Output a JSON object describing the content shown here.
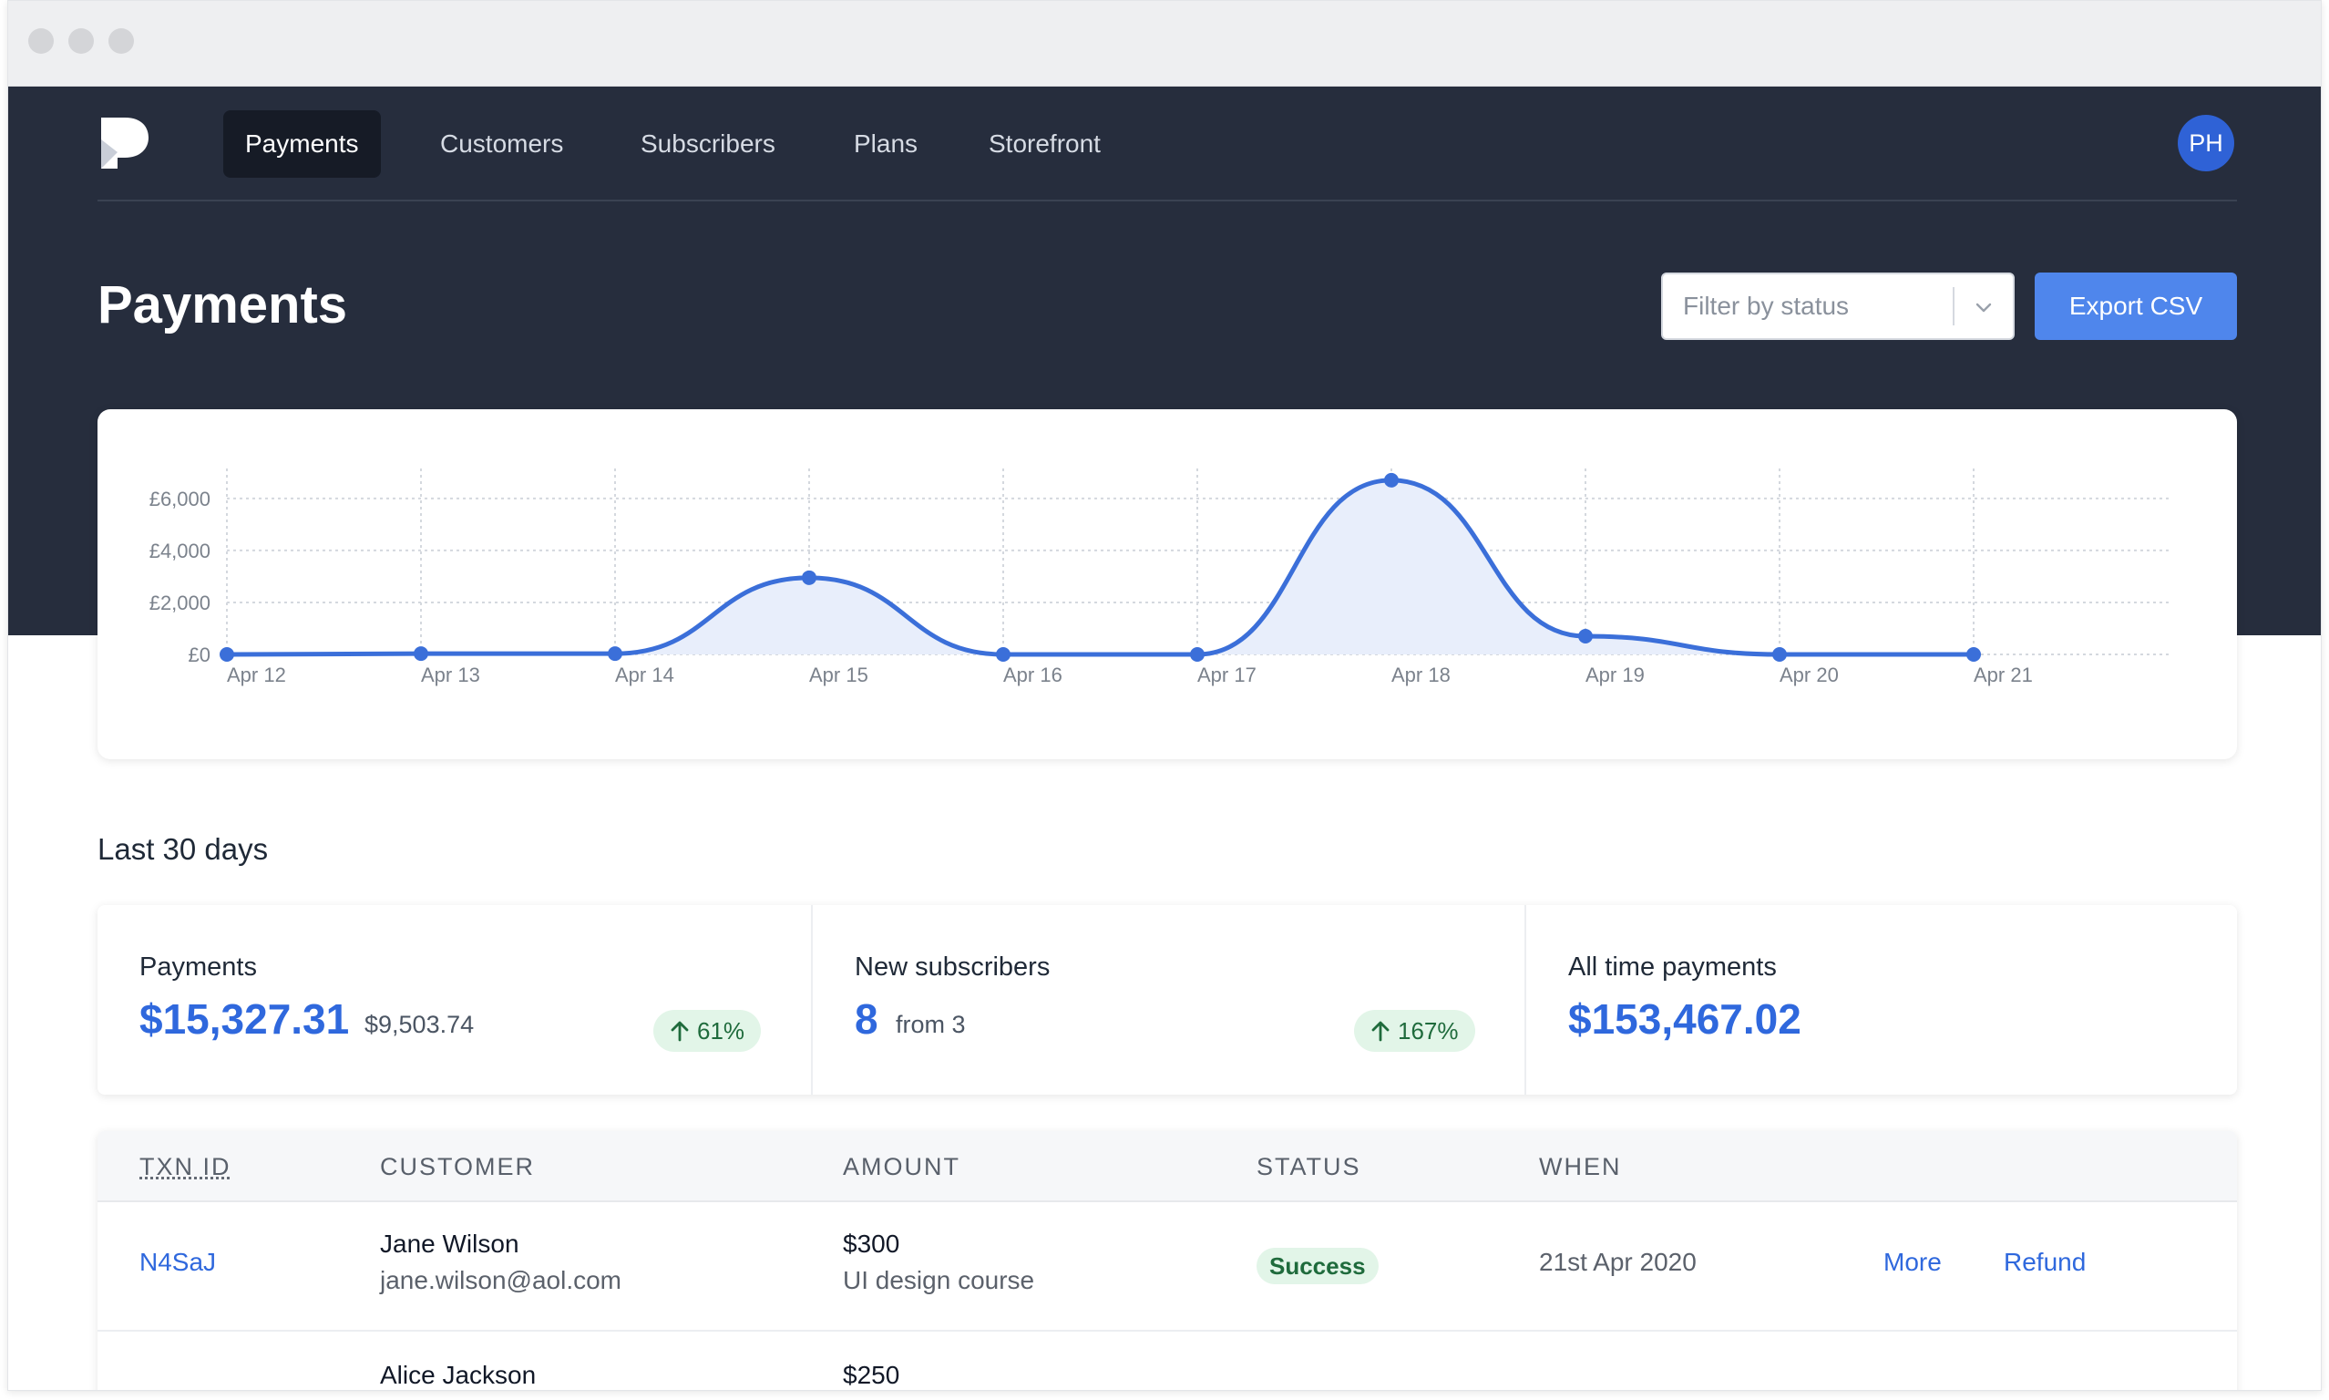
{
  "nav": {
    "items": [
      {
        "label": "Payments",
        "active": true
      },
      {
        "label": "Customers",
        "active": false
      },
      {
        "label": "Subscribers",
        "active": false
      },
      {
        "label": "Plans",
        "active": false
      },
      {
        "label": "Storefront",
        "active": false
      }
    ],
    "avatar_initials": "PH"
  },
  "header": {
    "title": "Payments",
    "filter_placeholder": "Filter by status",
    "export_label": "Export CSV"
  },
  "chart_data": {
    "type": "area",
    "x": [
      "Apr 12",
      "Apr 13",
      "Apr 14",
      "Apr 15",
      "Apr 16",
      "Apr 17",
      "Apr 18",
      "Apr 19",
      "Apr 20",
      "Apr 21"
    ],
    "series": [
      {
        "values": [
          0,
          30,
          30,
          2950,
          0,
          0,
          6700,
          700,
          0,
          0
        ]
      }
    ],
    "y_ticks": [
      "£0",
      "£2,000",
      "£4,000",
      "£6,000"
    ],
    "ylim": [
      0,
      6800
    ],
    "grid": true,
    "line_color": "#3b6fd9",
    "fill_color": "#e8eefb"
  },
  "summary": {
    "title": "Last 30 days",
    "stats": [
      {
        "label": "Payments",
        "value": "$15,327.31",
        "sub": "$9,503.74",
        "change": "61%"
      },
      {
        "label": "New subscribers",
        "value": "8",
        "sub": "from 3",
        "change": "167%"
      },
      {
        "label": "All time payments",
        "value": "$153,467.02"
      }
    ]
  },
  "table": {
    "headers": [
      "TXN ID",
      "CUSTOMER",
      "AMOUNT",
      "STATUS",
      "WHEN"
    ],
    "rows": [
      {
        "txn": "N4SaJ",
        "name": "Jane Wilson",
        "email": "jane.wilson@aol.com",
        "amount": "$300",
        "product": "UI design course",
        "status": "Success",
        "when": "21st Apr 2020",
        "more": "More",
        "refund": "Refund"
      },
      {
        "txn": "",
        "name": "Alice Jackson",
        "email": "",
        "amount": "$250",
        "product": "",
        "status": "",
        "when": "",
        "more": "",
        "refund": ""
      }
    ]
  },
  "colors": {
    "hero_bg": "#262d3d",
    "accent": "#2f68dd",
    "button": "#4f86ec",
    "success_bg": "#e2f5e8",
    "success_text": "#1f6b3c"
  }
}
